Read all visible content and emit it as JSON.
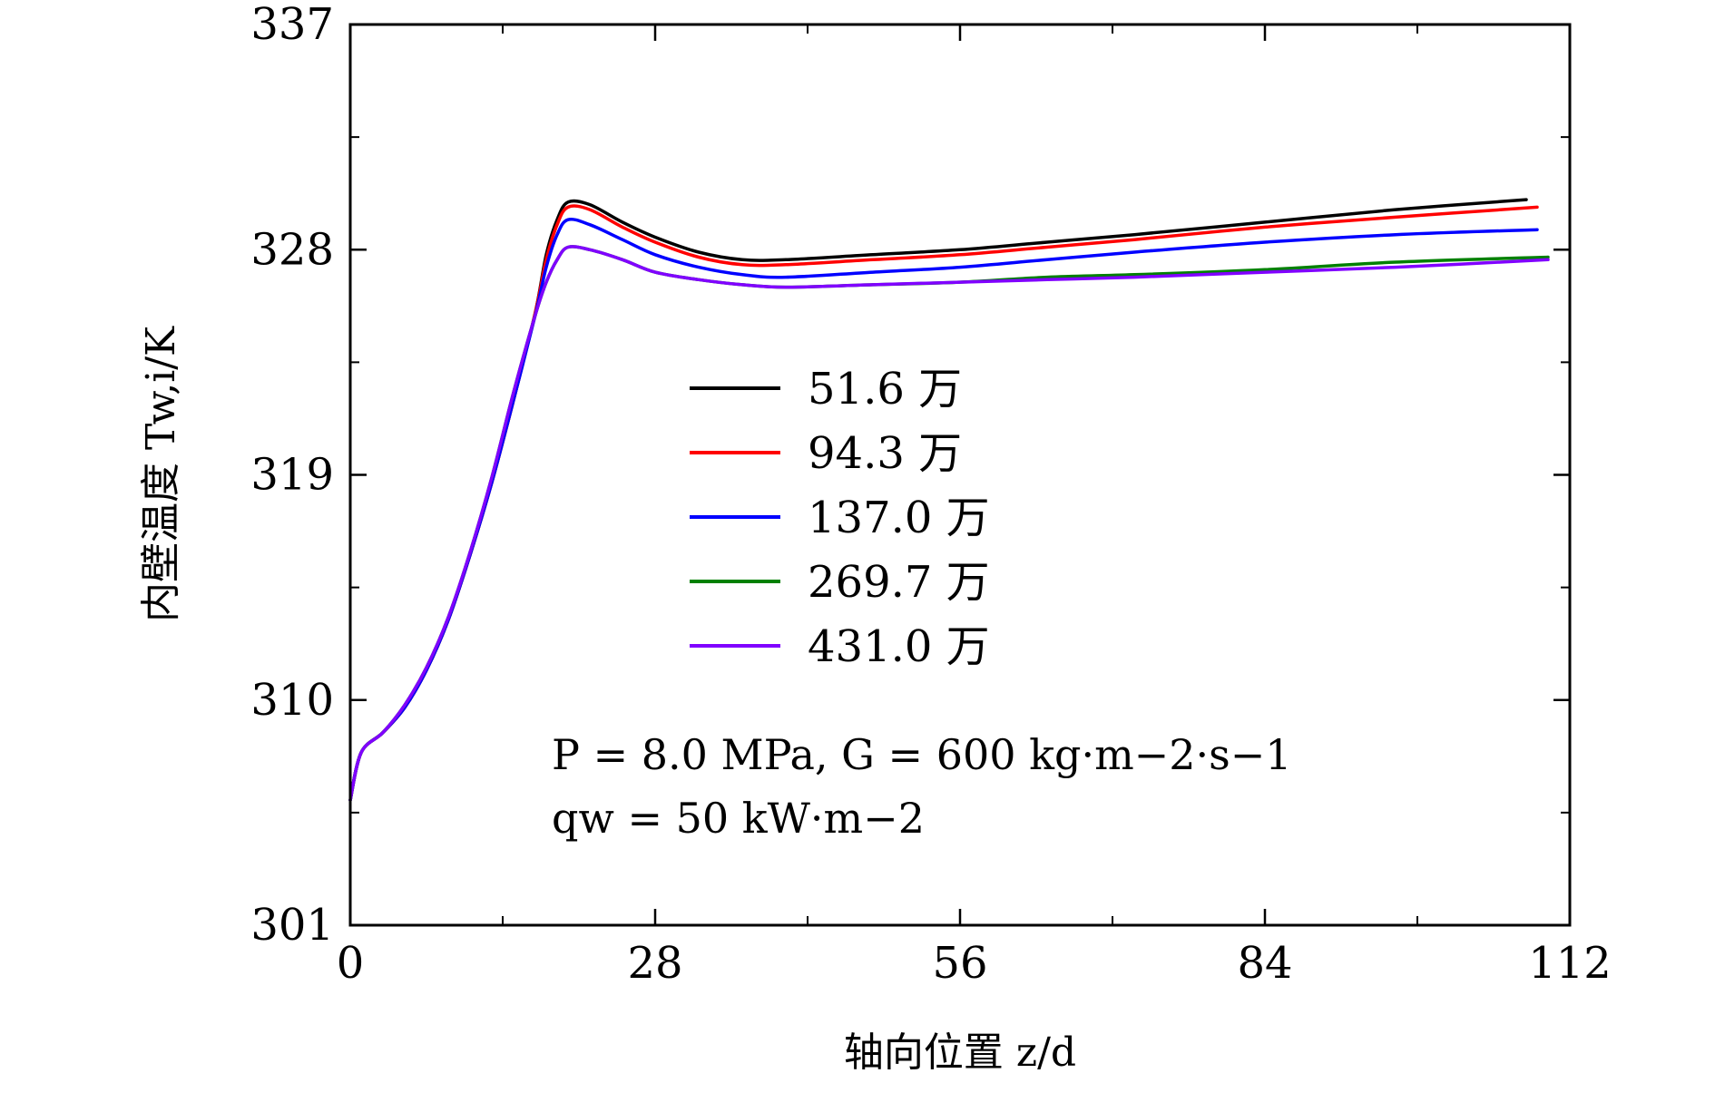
{
  "chart_data": {
    "type": "line",
    "xlabel": "轴向位置 z/d",
    "ylabel": "内壁温度 Tw,i/K",
    "xlim": [
      0,
      112
    ],
    "ylim": [
      301,
      337
    ],
    "x_ticks": [
      "0",
      "28",
      "56",
      "84",
      "112"
    ],
    "y_ticks": [
      "301",
      "310",
      "319",
      "328",
      "337"
    ],
    "legend_position": "center",
    "annotation": [
      "P = 8.0 MPa, G = 600 kg·m−2·s−1",
      "qw = 50 kW·m−2"
    ],
    "series": [
      {
        "name": "51.6 万",
        "color": "#000000",
        "points": [
          [
            0,
            306
          ],
          [
            1,
            307.9
          ],
          [
            3,
            308.7
          ],
          [
            5,
            309.7
          ],
          [
            7,
            311.2
          ],
          [
            9,
            313.2
          ],
          [
            11,
            315.8
          ],
          [
            13,
            318.7
          ],
          [
            15,
            322
          ],
          [
            17,
            325.5
          ],
          [
            18,
            327.8
          ],
          [
            19,
            329.2
          ],
          [
            20,
            329.9
          ],
          [
            22,
            329.8
          ],
          [
            25,
            329.1
          ],
          [
            28,
            328.5
          ],
          [
            32,
            327.9
          ],
          [
            36,
            327.6
          ],
          [
            40,
            327.6
          ],
          [
            48,
            327.8
          ],
          [
            56,
            328
          ],
          [
            64,
            328.3
          ],
          [
            72,
            328.6
          ],
          [
            84,
            329.1
          ],
          [
            96,
            329.6
          ],
          [
            108,
            330
          ]
        ]
      },
      {
        "name": "94.3 万",
        "color": "#ff0000",
        "points": [
          [
            0,
            306
          ],
          [
            1,
            307.9
          ],
          [
            3,
            308.7
          ],
          [
            5,
            309.7
          ],
          [
            7,
            311.2
          ],
          [
            9,
            313.2
          ],
          [
            11,
            315.8
          ],
          [
            13,
            318.7
          ],
          [
            15,
            322
          ],
          [
            17,
            325.5
          ],
          [
            18,
            327.6
          ],
          [
            19,
            329
          ],
          [
            20,
            329.7
          ],
          [
            22,
            329.6
          ],
          [
            25,
            328.9
          ],
          [
            28,
            328.3
          ],
          [
            32,
            327.7
          ],
          [
            36,
            327.4
          ],
          [
            40,
            327.4
          ],
          [
            48,
            327.6
          ],
          [
            56,
            327.8
          ],
          [
            64,
            328.1
          ],
          [
            72,
            328.4
          ],
          [
            84,
            328.9
          ],
          [
            96,
            329.3
          ],
          [
            109,
            329.7
          ]
        ]
      },
      {
        "name": "137.0 万",
        "color": "#0000ff",
        "points": [
          [
            0,
            306
          ],
          [
            1,
            307.9
          ],
          [
            3,
            308.7
          ],
          [
            5,
            309.7
          ],
          [
            7,
            311.2
          ],
          [
            9,
            313.2
          ],
          [
            11,
            315.8
          ],
          [
            13,
            318.7
          ],
          [
            15,
            322
          ],
          [
            17,
            325.4
          ],
          [
            18,
            327.3
          ],
          [
            19,
            328.6
          ],
          [
            20,
            329.2
          ],
          [
            22,
            329
          ],
          [
            25,
            328.4
          ],
          [
            28,
            327.8
          ],
          [
            32,
            327.3
          ],
          [
            36,
            327
          ],
          [
            40,
            326.9
          ],
          [
            48,
            327.1
          ],
          [
            56,
            327.3
          ],
          [
            64,
            327.6
          ],
          [
            72,
            327.9
          ],
          [
            84,
            328.3
          ],
          [
            96,
            328.6
          ],
          [
            109,
            328.8
          ]
        ]
      },
      {
        "name": "269.7 万",
        "color": "#008000",
        "points": [
          [
            0,
            306
          ],
          [
            1,
            307.9
          ],
          [
            3,
            308.7
          ],
          [
            5,
            309.8
          ],
          [
            7,
            311.3
          ],
          [
            9,
            313.3
          ],
          [
            11,
            315.9
          ],
          [
            13,
            318.9
          ],
          [
            15,
            322.3
          ],
          [
            17,
            325.4
          ],
          [
            18,
            326.7
          ],
          [
            19,
            327.6
          ],
          [
            20,
            328.1
          ],
          [
            22,
            328
          ],
          [
            25,
            327.6
          ],
          [
            28,
            327.1
          ],
          [
            32,
            326.8
          ],
          [
            36,
            326.6
          ],
          [
            40,
            326.5
          ],
          [
            48,
            326.6
          ],
          [
            56,
            326.7
          ],
          [
            64,
            326.9
          ],
          [
            72,
            327
          ],
          [
            84,
            327.2
          ],
          [
            96,
            327.5
          ],
          [
            110,
            327.7
          ]
        ]
      },
      {
        "name": "431.0 万",
        "color": "#8000ff",
        "points": [
          [
            0,
            306
          ],
          [
            1,
            307.9
          ],
          [
            3,
            308.7
          ],
          [
            5,
            309.8
          ],
          [
            7,
            311.3
          ],
          [
            9,
            313.3
          ],
          [
            11,
            315.9
          ],
          [
            13,
            318.9
          ],
          [
            15,
            322.3
          ],
          [
            17,
            325.4
          ],
          [
            18,
            326.7
          ],
          [
            19,
            327.6
          ],
          [
            20,
            328.1
          ],
          [
            22,
            328
          ],
          [
            25,
            327.6
          ],
          [
            28,
            327.1
          ],
          [
            32,
            326.8
          ],
          [
            36,
            326.6
          ],
          [
            40,
            326.5
          ],
          [
            48,
            326.6
          ],
          [
            56,
            326.7
          ],
          [
            64,
            326.8
          ],
          [
            72,
            326.9
          ],
          [
            84,
            327.1
          ],
          [
            96,
            327.3
          ],
          [
            110,
            327.6
          ]
        ]
      }
    ]
  }
}
